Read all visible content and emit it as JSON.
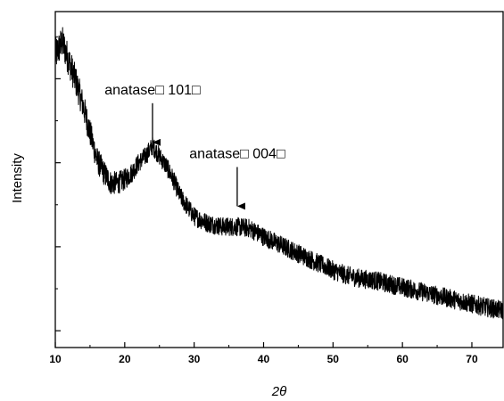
{
  "chart_data": {
    "type": "line",
    "title": "",
    "xlabel": "2θ",
    "ylabel": "Intensity",
    "xlim": [
      10,
      74.5
    ],
    "ylim": [
      0,
      1
    ],
    "grid": false,
    "legend": "none",
    "line_color": "#000000",
    "x_ticks": [
      10,
      20,
      30,
      40,
      50,
      60,
      70
    ],
    "x_tick_labels": [
      "10",
      "20",
      "30",
      "40",
      "50",
      "60",
      "70"
    ],
    "y_ticks_labeled": false,
    "series": [
      {
        "name": "",
        "noise": 0.028,
        "x": [
          10,
          11,
          12,
          13,
          14,
          15,
          16,
          17,
          18,
          19,
          20,
          21,
          22,
          23,
          24,
          25,
          26,
          27,
          28,
          29,
          30,
          32,
          34,
          36,
          38,
          40,
          42,
          44,
          46,
          48,
          50,
          52,
          54,
          56,
          58,
          60,
          62,
          64,
          66,
          68,
          70,
          72,
          74.5
        ],
        "y": [
          0.87,
          0.91,
          0.85,
          0.79,
          0.72,
          0.64,
          0.56,
          0.52,
          0.49,
          0.49,
          0.5,
          0.52,
          0.55,
          0.57,
          0.6,
          0.57,
          0.54,
          0.5,
          0.45,
          0.42,
          0.39,
          0.37,
          0.36,
          0.36,
          0.355,
          0.33,
          0.31,
          0.29,
          0.27,
          0.25,
          0.23,
          0.215,
          0.205,
          0.2,
          0.19,
          0.18,
          0.17,
          0.16,
          0.15,
          0.14,
          0.13,
          0.12,
          0.11
        ]
      }
    ],
    "annotations": [
      {
        "text": "anatase□ 101□",
        "x": 24,
        "y": 0.6
      },
      {
        "text": "anatase□ 004□",
        "x": 36.2,
        "y": 0.41
      }
    ]
  }
}
